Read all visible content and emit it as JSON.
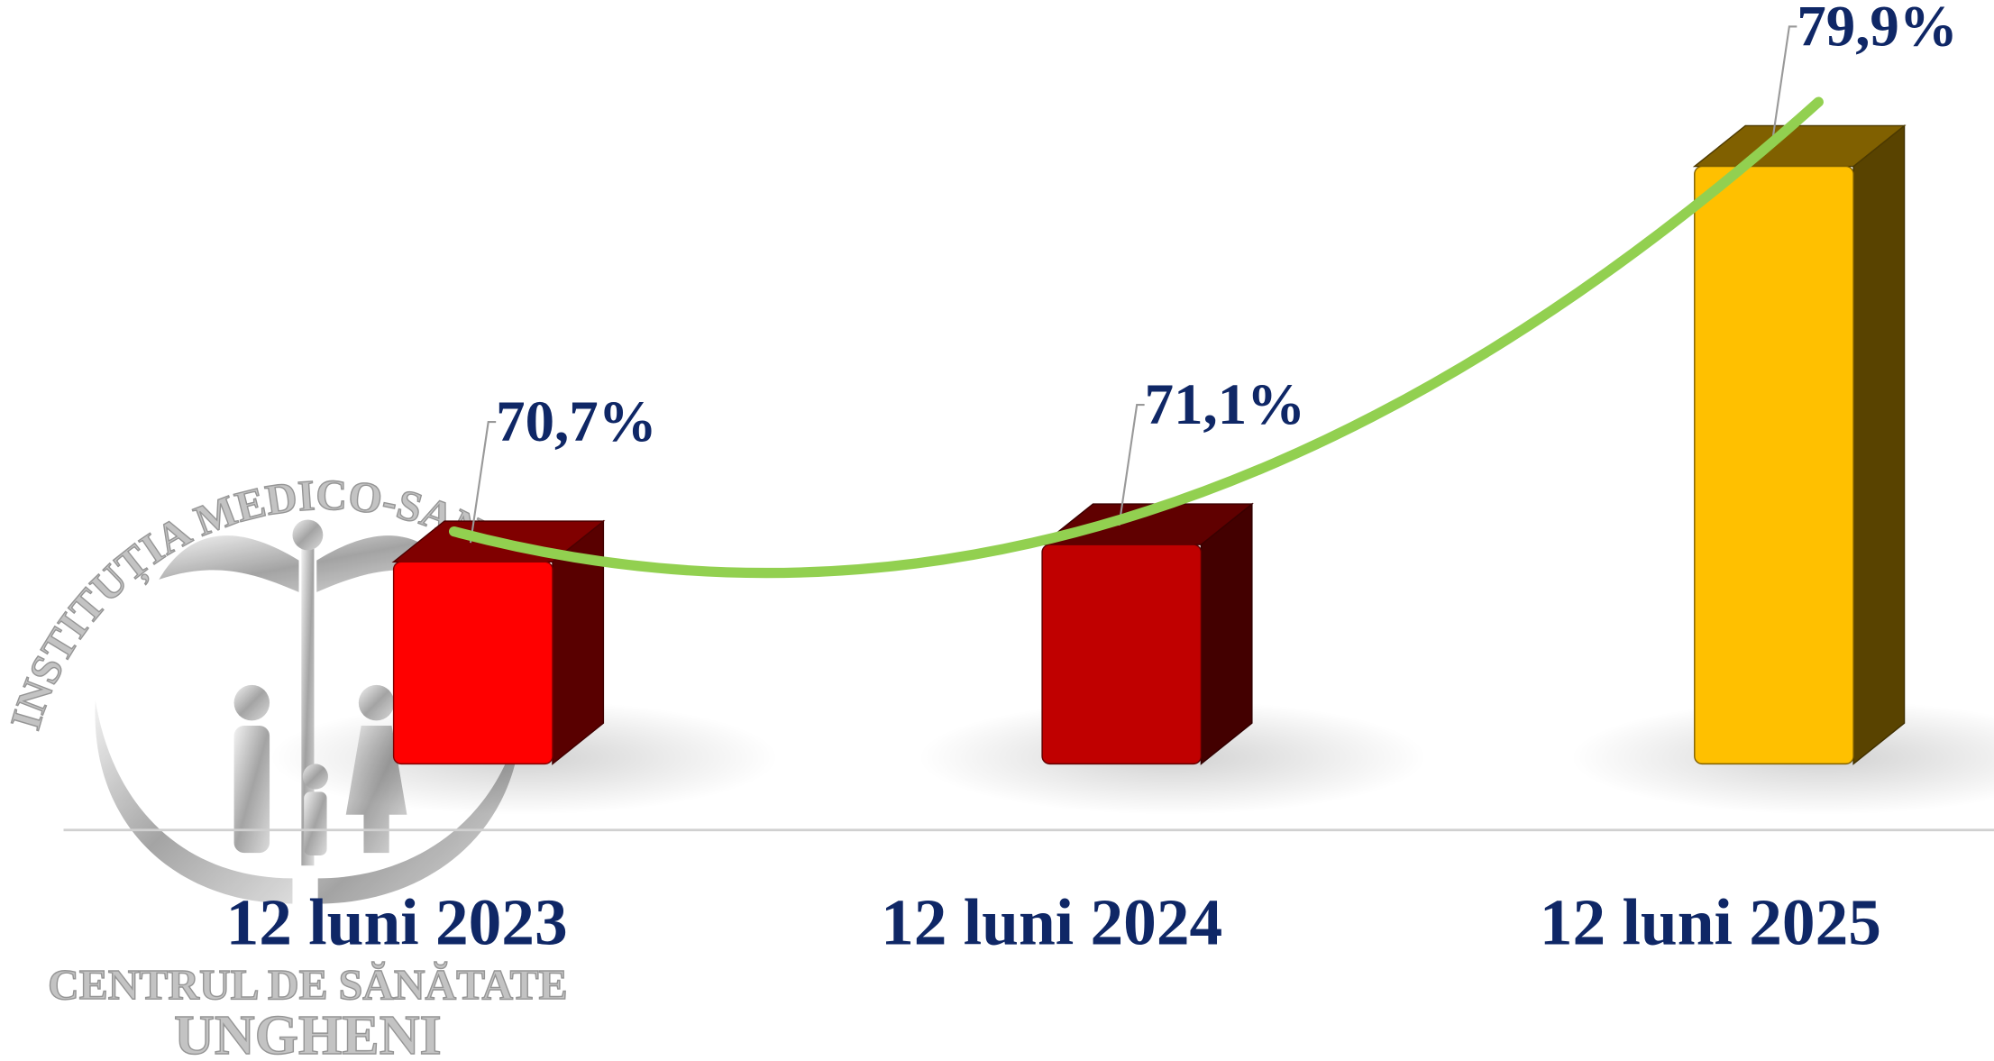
{
  "chart_data": {
    "type": "bar3d",
    "categories": [
      "12 luni 2023",
      "12  luni 2024",
      "12 luni 2025"
    ],
    "values": [
      70.7,
      71.1,
      79.9
    ],
    "value_labels": [
      "70,7%",
      "71,1%",
      "79,9%"
    ],
    "colors": [
      "#ff0000",
      "#c00000",
      "#ffc000"
    ],
    "ylim": [
      66,
      81
    ],
    "trendline": {
      "color": "#92d050"
    }
  },
  "logo": {
    "arc_text": "INSTITUȚIA MEDICO-SANITARĂ",
    "line1": "CENTRUL DE SĂNĂTATE",
    "line2": "UNGHENI"
  }
}
